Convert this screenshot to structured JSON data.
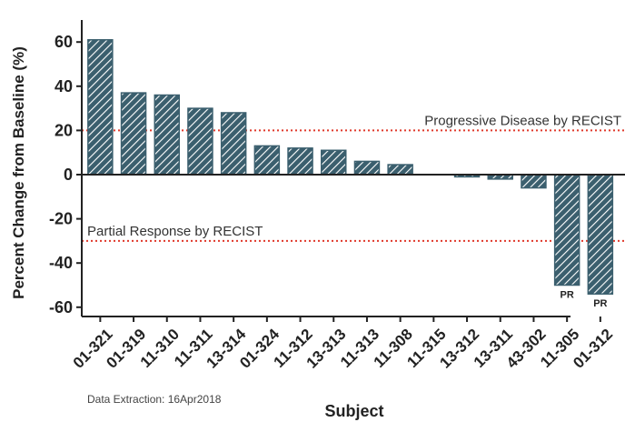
{
  "chart_data": {
    "type": "bar",
    "categories": [
      "01-321",
      "01-319",
      "11-310",
      "11-311",
      "13-314",
      "01-324",
      "11-312",
      "13-313",
      "11-313",
      "11-308",
      "11-315",
      "13-312",
      "13-311",
      "43-302",
      "11-305",
      "01-312"
    ],
    "values": [
      61,
      37,
      36,
      30,
      28,
      13,
      12,
      11,
      6,
      4.5,
      0,
      -1,
      -2,
      -6,
      -50,
      -54
    ],
    "bar_labels": [
      "",
      "",
      "",
      "",
      "",
      "",
      "",
      "",
      "",
      "",
      "",
      "",
      "",
      "",
      "PR",
      "PR"
    ],
    "xlabel": "Subject",
    "ylabel": "Percent Change from Baseline (%)",
    "ylim": [
      -65,
      70
    ],
    "yticks": [
      60,
      40,
      20,
      0,
      -20,
      -40,
      -60
    ],
    "reference_lines": [
      {
        "value": 20,
        "label": "Progressive Disease by RECIST"
      },
      {
        "value": -30,
        "label": "Partial Response by RECIST"
      }
    ],
    "footnote": "Data Extraction: 16Apr2018",
    "grid": false,
    "legend": "none",
    "colors": {
      "bar_fill": "#3b5f6e",
      "hatch": "#ffffff",
      "reference_line": "#e0392b",
      "axis": "#222222"
    }
  }
}
